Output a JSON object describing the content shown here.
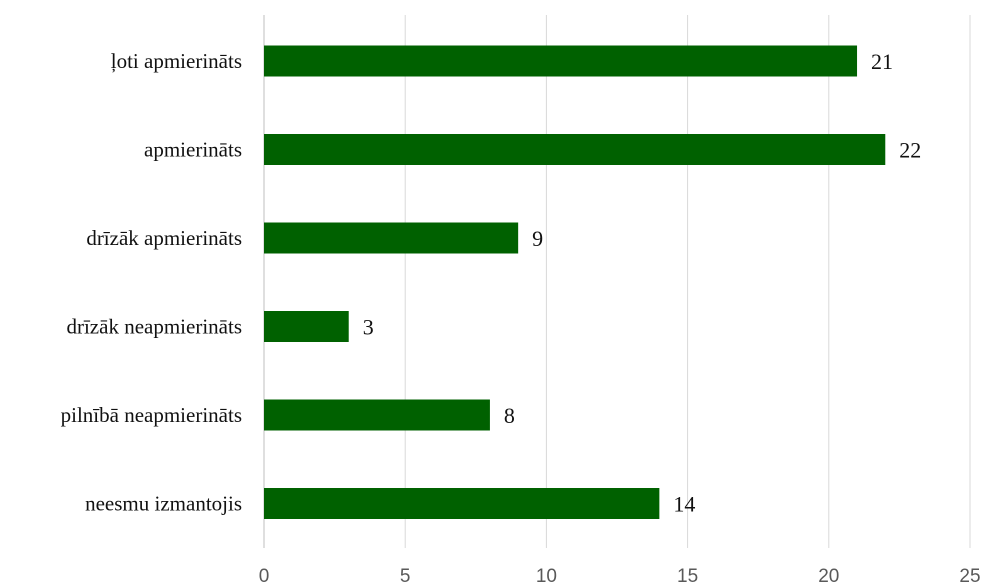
{
  "chart_data": {
    "type": "bar",
    "orientation": "horizontal",
    "categories": [
      "ļoti apmierināts",
      "apmierināts",
      "drīzāk apmierināts",
      "drīzāk neapmierināts",
      "pilnībā neapmierināts",
      "neesmu izmantojis"
    ],
    "values": [
      21,
      22,
      9,
      3,
      8,
      14
    ],
    "xlim": [
      0,
      25
    ],
    "xticks": [
      0,
      5,
      10,
      15,
      20,
      25
    ],
    "grid": true,
    "legend": "none",
    "colors": {
      "bar": "#006100",
      "grid": "#d9d9d9",
      "text": "#111111",
      "tick_text": "#595959"
    }
  }
}
